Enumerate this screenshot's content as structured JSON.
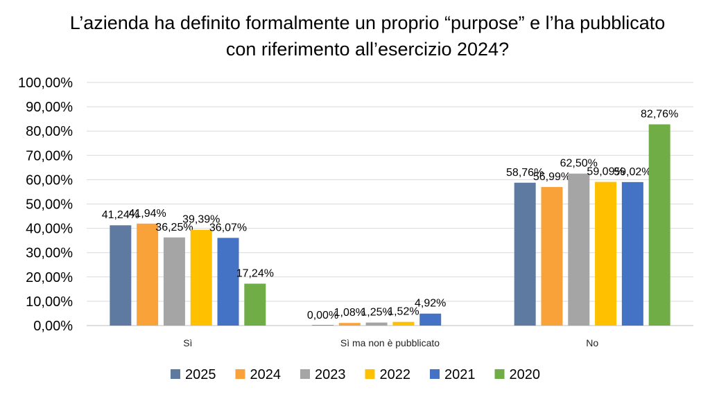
{
  "chart_data": {
    "type": "bar",
    "title": "L’azienda ha definito formalmente un proprio “purpose” e l’ha pubblicato con riferimento all’esercizio 2024?",
    "categories": [
      "Sì",
      "Sì ma non è pubblicato",
      "No"
    ],
    "ylim": [
      0,
      100
    ],
    "yticks": [
      "0,00%",
      "10,00%",
      "20,00%",
      "30,00%",
      "40,00%",
      "50,00%",
      "60,00%",
      "70,00%",
      "80,00%",
      "90,00%",
      "100,00%"
    ],
    "grid": true,
    "legend_position": "bottom",
    "series": [
      {
        "name": "2025",
        "color": "#5f7aa0",
        "values": [
          41.24,
          0.0,
          58.76
        ],
        "labels": [
          "41,24%",
          "0,00%",
          "58,76%"
        ]
      },
      {
        "name": "2024",
        "color": "#f9a23a",
        "values": [
          41.94,
          1.08,
          56.99
        ],
        "labels": [
          "41,94%",
          "1,08%",
          "56,99%"
        ]
      },
      {
        "name": "2023",
        "color": "#a5a5a5",
        "values": [
          36.25,
          1.25,
          62.5
        ],
        "labels": [
          "36,25%",
          "1,25%",
          "62,50%"
        ]
      },
      {
        "name": "2022",
        "color": "#ffc000",
        "values": [
          39.39,
          1.52,
          59.09
        ],
        "labels": [
          "39,39%",
          "1,52%",
          "59,09%"
        ]
      },
      {
        "name": "2021",
        "color": "#4472c4",
        "values": [
          36.07,
          4.92,
          59.02
        ],
        "labels": [
          "36,07%",
          "4,92%",
          "59,02%"
        ]
      },
      {
        "name": "2020",
        "color": "#70ad47",
        "values": [
          17.24,
          null,
          82.76
        ],
        "labels": [
          "17,24%",
          "",
          "82,76%"
        ]
      }
    ]
  }
}
